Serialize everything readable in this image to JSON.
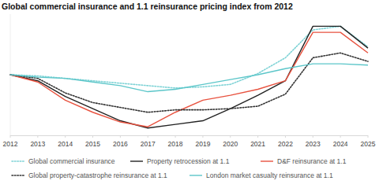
{
  "chart_data": {
    "type": "line",
    "title": "Global commercial insurance and 1.1 reinsurance pricing index from 2012",
    "x": [
      2012,
      2013,
      2014,
      2015,
      2016,
      2017,
      2018,
      2019,
      2020,
      2021,
      2022,
      2023,
      2024,
      2025
    ],
    "xlim": [
      2012,
      2025
    ],
    "xticks": [
      2012,
      2013,
      2014,
      2015,
      2016,
      2017,
      2018,
      2019,
      2020,
      2021,
      2022,
      2023,
      2024,
      2025
    ],
    "ylim": [
      50,
      150
    ],
    "tick_labels": "x",
    "grid": false,
    "legend": "bottom",
    "series": [
      {
        "name": "Global commercial insurance",
        "color": "#7fd3d6",
        "line_style": "dotted",
        "values": [
          100,
          99,
          97,
          95,
          93,
          91,
          89,
          90,
          92,
          101,
          114,
          137,
          140,
          123
        ]
      },
      {
        "name": "Property retrocession at 1.1",
        "color": "#222222",
        "line_style": "solid",
        "values": [
          100,
          95,
          82,
          72,
          62,
          56,
          59,
          62,
          72,
          83,
          95,
          140,
          140,
          122
        ]
      },
      {
        "name": "D&F reinsurance at 1.1",
        "color": "#e8523f",
        "line_style": "solid",
        "values": [
          100,
          94,
          79,
          69,
          61,
          57,
          69,
          79,
          83,
          88,
          95,
          135,
          135,
          118
        ]
      },
      {
        "name": "Global property-catastrophe reinsurance at 1.1",
        "color": "#333333",
        "line_style": "dotted",
        "values": [
          100,
          97,
          85,
          77,
          73,
          69,
          71,
          71,
          72,
          74,
          84,
          114,
          118,
          111
        ]
      },
      {
        "name": "London market casualty reinsurance at 1.1",
        "color": "#5cc6c9",
        "line_style": "solid",
        "values": [
          100,
          98,
          97,
          94,
          91,
          86,
          88,
          92,
          96,
          100,
          105,
          109,
          109,
          108
        ]
      }
    ]
  }
}
